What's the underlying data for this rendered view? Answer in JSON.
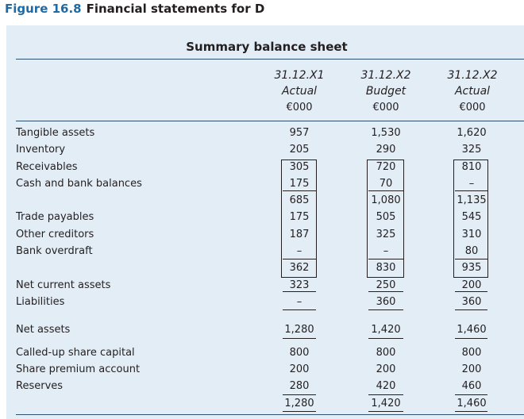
{
  "figure": {
    "label": "Figure 16.8",
    "caption": "Financial statements for D"
  },
  "sheet_title": "Summary balance sheet",
  "columns": [
    {
      "date": "31.12.X1",
      "type": "Actual",
      "unit": "€000"
    },
    {
      "date": "31.12.X2",
      "type": "Budget",
      "unit": "€000"
    },
    {
      "date": "31.12.X2",
      "type": "Actual",
      "unit": "€000"
    }
  ],
  "rows": [
    {
      "label": "Tangible assets",
      "values": [
        "957",
        "1,530",
        "1,620"
      ]
    },
    {
      "label": "Inventory",
      "values": [
        "205",
        "290",
        "325"
      ]
    },
    {
      "label": "Receivables",
      "values": [
        "305",
        "720",
        "810"
      ]
    },
    {
      "label": "Cash and bank balances",
      "values": [
        "175",
        "70",
        "–"
      ]
    },
    {
      "label": "",
      "values": [
        "685",
        "1,080",
        "1,135"
      ]
    },
    {
      "label": "Trade payables",
      "values": [
        "175",
        "505",
        "545"
      ]
    },
    {
      "label": "Other creditors",
      "values": [
        "187",
        "325",
        "310"
      ]
    },
    {
      "label": "Bank overdraft",
      "values": [
        "–",
        "–",
        "80"
      ]
    },
    {
      "label": "",
      "values": [
        "362",
        "830",
        "935"
      ]
    },
    {
      "label": "Net current assets",
      "values": [
        "323",
        "250",
        "200"
      ]
    },
    {
      "label": "Liabilities",
      "values": [
        "–",
        "360",
        "360"
      ]
    },
    {
      "label": "Net assets",
      "values": [
        "1,280",
        "1,420",
        "1,460"
      ]
    },
    {
      "label": "Called-up share capital",
      "values": [
        "800",
        "800",
        "800"
      ]
    },
    {
      "label": "Share premium account",
      "values": [
        "200",
        "200",
        "200"
      ]
    },
    {
      "label": "Reserves",
      "values": [
        "280",
        "420",
        "460"
      ]
    },
    {
      "label": "",
      "values": [
        "1,280",
        "1,420",
        "1,460"
      ]
    }
  ]
}
